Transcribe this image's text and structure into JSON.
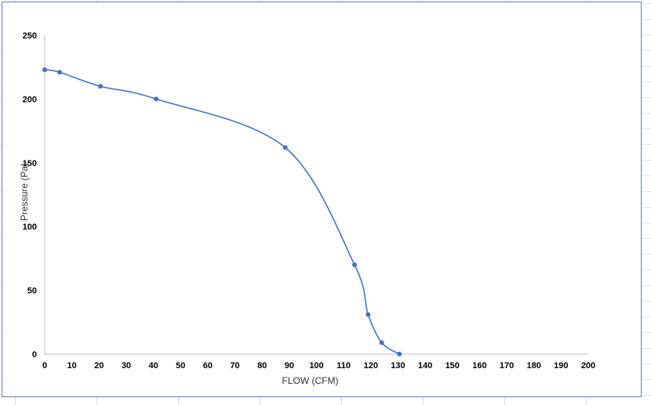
{
  "chart_data": {
    "type": "line",
    "title": "",
    "xlabel": "FLOW (CFM)",
    "ylabel": "Pressure (Pa)",
    "xlim": [
      0,
      200
    ],
    "ylim": [
      0,
      250
    ],
    "x_ticks": [
      0,
      10,
      20,
      30,
      40,
      50,
      60,
      70,
      80,
      90,
      100,
      110,
      120,
      130,
      140,
      150,
      160,
      170,
      180,
      190,
      200
    ],
    "y_ticks": [
      0,
      50,
      100,
      150,
      200,
      250
    ],
    "grid": false,
    "legend": "none",
    "series": [
      {
        "x": [
          0,
          5.5,
          20.5,
          41,
          88.5,
          114,
          119,
          124,
          130.5
        ],
        "y": [
          223,
          221,
          210,
          200,
          162,
          70,
          31,
          9,
          0
        ],
        "color": "#4472c4",
        "smooth": true,
        "markers": true
      }
    ]
  }
}
